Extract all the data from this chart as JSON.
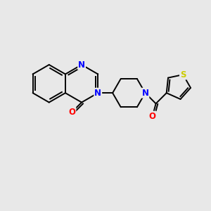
{
  "background_color": "#e8e8e8",
  "bond_color": "#000000",
  "atom_colors": {
    "N": "#0000ff",
    "O": "#ff0000",
    "S": "#cccc00"
  },
  "figsize": [
    3.0,
    3.0
  ],
  "dpi": 100,
  "lw": 1.4,
  "fs": 8.5
}
